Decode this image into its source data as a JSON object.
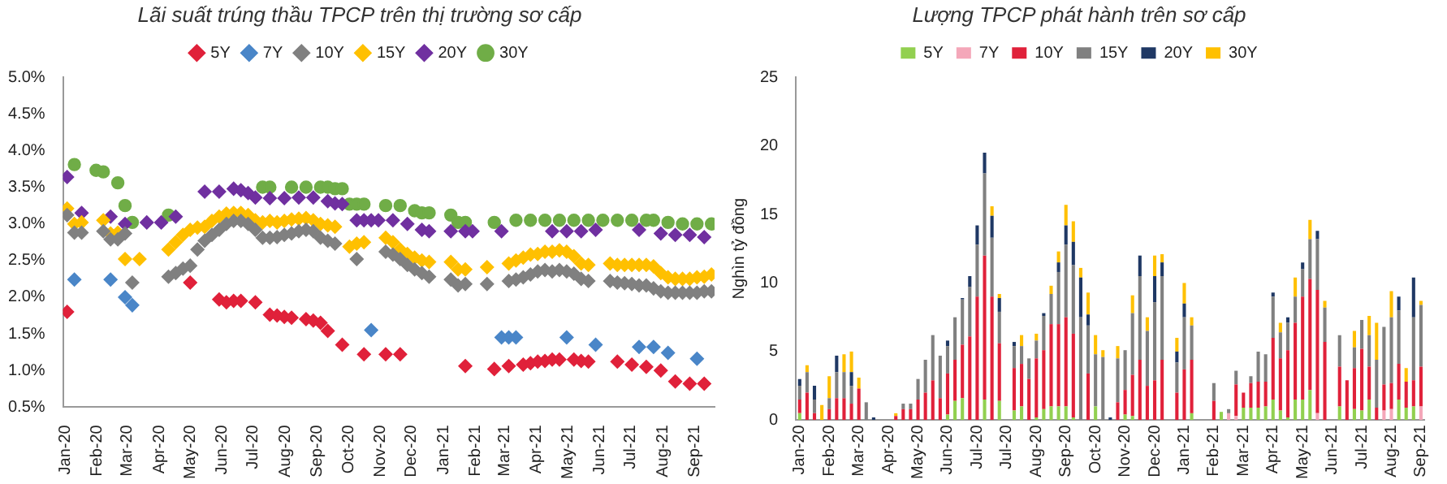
{
  "chart_data": [
    {
      "type": "scatter",
      "title": "Lãi suất trúng thầu TPCP trên thị trường sơ cấp",
      "x": [
        "2020-01-03",
        "2020-01-10",
        "2020-01-17",
        "2020-01-24",
        "2020-01-31",
        "2020-02-07",
        "2020-02-14",
        "2020-02-21",
        "2020-02-28",
        "2020-03-06",
        "2020-03-13",
        "2020-03-20",
        "2020-03-27",
        "2020-04-03",
        "2020-04-10",
        "2020-04-17",
        "2020-04-24",
        "2020-05-01",
        "2020-05-08",
        "2020-05-15",
        "2020-05-22",
        "2020-05-29",
        "2020-06-05",
        "2020-06-12",
        "2020-06-19",
        "2020-06-26",
        "2020-07-03",
        "2020-07-10",
        "2020-07-17",
        "2020-07-24",
        "2020-07-31",
        "2020-08-07",
        "2020-08-14",
        "2020-08-21",
        "2020-08-28",
        "2020-09-04",
        "2020-09-11",
        "2020-09-18",
        "2020-09-25",
        "2020-10-02",
        "2020-10-09",
        "2020-10-16",
        "2020-10-23",
        "2020-10-30",
        "2020-11-06",
        "2020-11-13",
        "2020-11-20",
        "2020-11-27",
        "2020-12-04",
        "2020-12-11",
        "2020-12-18",
        "2020-12-25",
        "2021-01-01",
        "2021-01-08",
        "2021-01-15",
        "2021-01-22",
        "2021-01-29",
        "2021-02-05",
        "2021-02-12",
        "2021-02-19",
        "2021-02-26",
        "2021-03-05",
        "2021-03-12",
        "2021-03-19",
        "2021-03-26",
        "2021-04-02",
        "2021-04-09",
        "2021-04-16",
        "2021-04-23",
        "2021-04-30",
        "2021-05-07",
        "2021-05-14",
        "2021-05-21",
        "2021-05-28",
        "2021-06-04",
        "2021-06-11",
        "2021-06-18",
        "2021-06-25",
        "2021-07-02",
        "2021-07-09",
        "2021-07-16",
        "2021-07-23",
        "2021-07-30",
        "2021-08-06",
        "2021-08-13",
        "2021-08-20",
        "2021-08-27",
        "2021-09-03",
        "2021-09-10",
        "2021-09-17"
      ],
      "xlim": [
        "2019-12-30",
        "2021-09-20"
      ],
      "xticks": [
        {
          "value": "2020-01-01",
          "label": "Jan-20"
        },
        {
          "value": "2020-02-01",
          "label": "Feb-20"
        },
        {
          "value": "2020-03-01",
          "label": "Mar-20"
        },
        {
          "value": "2020-04-01",
          "label": "Apr-20"
        },
        {
          "value": "2020-05-01",
          "label": "May-20"
        },
        {
          "value": "2020-06-01",
          "label": "Jun-20"
        },
        {
          "value": "2020-07-01",
          "label": "Jul-20"
        },
        {
          "value": "2020-08-01",
          "label": "Aug-20"
        },
        {
          "value": "2020-09-01",
          "label": "Sep-20"
        },
        {
          "value": "2020-10-01",
          "label": "Oct-20"
        },
        {
          "value": "2020-11-01",
          "label": "Nov-20"
        },
        {
          "value": "2020-12-01",
          "label": "Dec-20"
        },
        {
          "value": "2021-01-01",
          "label": "Jan-21"
        },
        {
          "value": "2021-02-01",
          "label": "Feb-21"
        },
        {
          "value": "2021-03-01",
          "label": "Mar-21"
        },
        {
          "value": "2021-04-01",
          "label": "Apr-21"
        },
        {
          "value": "2021-05-01",
          "label": "May-21"
        },
        {
          "value": "2021-06-01",
          "label": "Jun-21"
        },
        {
          "value": "2021-07-01",
          "label": "Jul-21"
        },
        {
          "value": "2021-08-01",
          "label": "Aug-21"
        },
        {
          "value": "2021-09-01",
          "label": "Sep-21"
        }
      ],
      "ylim": [
        0.5,
        5.0
      ],
      "yticks": [
        {
          "value": 0.5,
          "label": "0.5%"
        },
        {
          "value": 1.0,
          "label": "1.0%"
        },
        {
          "value": 1.5,
          "label": "1.5%"
        },
        {
          "value": 2.0,
          "label": "2.0%"
        },
        {
          "value": 2.5,
          "label": "2.5%"
        },
        {
          "value": 3.0,
          "label": "3.0%"
        },
        {
          "value": 3.5,
          "label": "3.5%"
        },
        {
          "value": 4.0,
          "label": "4.0%"
        },
        {
          "value": 4.5,
          "label": "4.5%"
        },
        {
          "value": 5.0,
          "label": "5.0%"
        }
      ],
      "grid": false,
      "legend": "top",
      "series": [
        {
          "name": "5Y",
          "color": "#e0213a",
          "marker": "diamond",
          "values": [
            1.8,
            null,
            null,
            null,
            null,
            null,
            null,
            null,
            null,
            null,
            null,
            null,
            null,
            null,
            null,
            null,
            null,
            2.2,
            null,
            null,
            null,
            1.97,
            1.93,
            1.95,
            1.95,
            null,
            1.93,
            null,
            1.76,
            1.75,
            1.73,
            1.72,
            null,
            1.7,
            1.68,
            1.65,
            1.54,
            null,
            1.35,
            null,
            null,
            1.22,
            null,
            null,
            1.22,
            null,
            1.22,
            null,
            null,
            null,
            null,
            null,
            null,
            null,
            null,
            1.06,
            null,
            null,
            null,
            1.02,
            null,
            1.06,
            null,
            1.08,
            1.1,
            1.12,
            1.13,
            1.15,
            1.15,
            null,
            1.15,
            1.13,
            1.12,
            null,
            null,
            null,
            1.12,
            null,
            1.08,
            null,
            1.05,
            null,
            1.0,
            null,
            0.85,
            null,
            0.82,
            null,
            0.82,
            null
          ]
        },
        {
          "name": "7Y",
          "color": "#4a86c8",
          "marker": "diamond",
          "values": [
            null,
            2.24,
            null,
            null,
            null,
            null,
            2.24,
            null,
            2.0,
            1.89,
            null,
            null,
            null,
            null,
            null,
            null,
            null,
            null,
            null,
            null,
            null,
            null,
            null,
            null,
            null,
            null,
            null,
            null,
            null,
            null,
            null,
            null,
            null,
            null,
            null,
            null,
            null,
            null,
            null,
            null,
            null,
            null,
            1.55,
            null,
            null,
            null,
            null,
            null,
            null,
            null,
            null,
            null,
            null,
            null,
            null,
            null,
            null,
            null,
            null,
            null,
            1.45,
            1.45,
            1.45,
            null,
            null,
            null,
            null,
            null,
            null,
            1.45,
            null,
            null,
            null,
            1.35,
            null,
            null,
            null,
            null,
            null,
            1.32,
            null,
            1.32,
            null,
            1.24,
            null,
            null,
            null,
            1.16,
            null,
            null
          ]
        },
        {
          "name": "10Y",
          "color": "#808080",
          "marker": "diamond",
          "values": [
            3.12,
            2.88,
            2.88,
            null,
            null,
            2.9,
            2.79,
            2.79,
            2.87,
            2.2,
            null,
            null,
            null,
            null,
            2.28,
            2.33,
            2.39,
            2.43,
            2.65,
            2.77,
            2.85,
            2.92,
            3.0,
            3.04,
            3.04,
            3.0,
            2.92,
            2.81,
            2.81,
            2.82,
            2.85,
            2.87,
            2.9,
            2.92,
            2.9,
            2.81,
            2.77,
            2.73,
            null,
            null,
            2.52,
            null,
            null,
            null,
            2.62,
            2.58,
            2.52,
            2.44,
            2.38,
            2.33,
            2.28,
            null,
            null,
            2.24,
            2.16,
            2.18,
            null,
            null,
            2.18,
            null,
            null,
            2.22,
            2.24,
            2.27,
            2.31,
            2.35,
            2.37,
            2.35,
            2.37,
            2.35,
            2.32,
            2.25,
            2.22,
            null,
            null,
            2.22,
            2.2,
            2.19,
            2.18,
            2.16,
            2.16,
            2.12,
            2.08,
            2.06,
            2.06,
            2.06,
            2.06,
            2.06,
            2.08,
            2.08
          ]
        },
        {
          "name": "15Y",
          "color": "#ffc000",
          "marker": "diamond",
          "values": [
            3.21,
            3.0,
            3.02,
            null,
            null,
            3.05,
            2.87,
            2.88,
            2.52,
            null,
            2.52,
            null,
            null,
            null,
            2.65,
            2.75,
            2.85,
            2.92,
            2.95,
            2.96,
            3.04,
            3.1,
            3.14,
            3.15,
            3.15,
            3.12,
            3.05,
            3.02,
            3.04,
            3.02,
            3.04,
            3.06,
            3.07,
            3.08,
            3.05,
            3.0,
            2.98,
            2.96,
            null,
            2.69,
            2.73,
            2.75,
            null,
            null,
            2.81,
            2.75,
            2.65,
            2.59,
            2.54,
            2.5,
            2.48,
            null,
            null,
            2.48,
            2.38,
            2.38,
            null,
            null,
            2.41,
            null,
            null,
            2.46,
            2.5,
            2.54,
            2.58,
            2.59,
            2.62,
            2.62,
            2.64,
            2.62,
            2.56,
            2.46,
            2.44,
            null,
            null,
            2.46,
            2.44,
            2.44,
            2.44,
            2.44,
            2.44,
            2.42,
            2.33,
            2.27,
            2.25,
            2.25,
            2.25,
            2.27,
            2.28,
            2.31
          ]
        },
        {
          "name": "20Y",
          "color": "#7030a0",
          "marker": "diamond",
          "values": [
            3.64,
            null,
            3.15,
            null,
            null,
            null,
            3.1,
            null,
            3.0,
            null,
            null,
            3.02,
            null,
            3.02,
            null,
            3.1,
            null,
            null,
            null,
            3.44,
            null,
            3.44,
            null,
            3.48,
            3.46,
            3.42,
            3.36,
            null,
            3.35,
            null,
            3.35,
            null,
            3.36,
            null,
            3.36,
            null,
            3.31,
            3.28,
            3.27,
            null,
            3.05,
            3.05,
            3.05,
            3.05,
            null,
            3.05,
            null,
            3.0,
            null,
            2.92,
            2.9,
            null,
            null,
            2.9,
            null,
            2.9,
            2.9,
            null,
            null,
            null,
            2.9,
            null,
            null,
            null,
            null,
            null,
            null,
            2.9,
            null,
            2.9,
            null,
            2.9,
            null,
            2.92,
            null,
            null,
            null,
            null,
            null,
            2.92,
            null,
            null,
            2.87,
            null,
            2.85,
            null,
            2.85,
            null,
            2.82,
            null
          ]
        },
        {
          "name": "30Y",
          "color": "#70ad47",
          "marker": "circle",
          "values": [
            null,
            3.81,
            null,
            null,
            3.73,
            3.71,
            null,
            3.56,
            3.25,
            3.02,
            null,
            null,
            null,
            null,
            3.12,
            null,
            null,
            null,
            null,
            null,
            null,
            null,
            null,
            null,
            null,
            null,
            null,
            3.5,
            3.5,
            null,
            null,
            3.5,
            null,
            3.5,
            null,
            3.5,
            3.5,
            3.48,
            3.48,
            3.27,
            3.27,
            3.27,
            null,
            null,
            3.25,
            null,
            3.25,
            null,
            3.18,
            3.15,
            3.15,
            null,
            null,
            3.12,
            3.02,
            3.02,
            null,
            null,
            null,
            3.02,
            null,
            null,
            3.05,
            null,
            3.05,
            null,
            3.05,
            null,
            3.05,
            null,
            3.05,
            null,
            3.05,
            null,
            3.05,
            null,
            3.05,
            null,
            3.05,
            null,
            3.05,
            3.05,
            null,
            3.02,
            null,
            3.0,
            null,
            3.0,
            null,
            3.0
          ]
        }
      ]
    },
    {
      "type": "bar",
      "stacked": true,
      "title": "Lượng TPCP phát hành trên sơ cấp",
      "ylabel": "Nghìn tỷ đồng",
      "categories": [
        "Jan-20",
        null,
        null,
        null,
        "Feb-20",
        null,
        null,
        null,
        "Mar-20",
        null,
        null,
        null,
        "Apr-20",
        null,
        null,
        null,
        "May-20",
        null,
        null,
        null,
        "Jun-20",
        null,
        null,
        null,
        "Jul-20",
        null,
        null,
        null,
        "Jul-20",
        null,
        null,
        null,
        "Aug-20",
        null,
        null,
        null,
        "Sep-20",
        null,
        null,
        null,
        "Oct-20",
        null,
        null,
        null,
        "Nov-20",
        null,
        null,
        null,
        "Dec-20",
        null,
        null,
        null,
        "Jan-21",
        null,
        null,
        null,
        "Feb-21",
        null,
        null,
        null,
        "Mar-21",
        null,
        null,
        null,
        "Apr-21",
        null,
        null,
        null,
        "May-21",
        null,
        null,
        null,
        "Jun-21",
        null,
        null,
        null,
        "Jul-21",
        null,
        null,
        null,
        "Aug-21",
        null,
        null,
        null,
        "Sep-21"
      ],
      "ylim": [
        0,
        25
      ],
      "yticks": [
        0,
        5,
        10,
        15,
        20,
        25
      ],
      "grid": false,
      "legend": "top",
      "series": [
        {
          "name": "5Y",
          "color": "#92d050",
          "values": [
            0.5,
            null,
            null,
            null,
            null,
            null,
            null,
            null,
            null,
            null,
            null,
            null,
            null,
            null,
            null,
            null,
            null,
            null,
            null,
            null,
            0.4,
            1.4,
            1.6,
            null,
            null,
            1.5,
            null,
            1.4,
            null,
            0.7,
            1.0,
            null,
            0.2,
            0.8,
            1.0,
            1.0,
            1.0,
            0.2,
            null,
            null,
            1.0,
            null,
            null,
            null,
            0.4,
            0.3,
            null,
            null,
            null,
            null,
            null,
            null,
            null,
            0.5,
            null,
            null,
            null,
            0.6,
            null,
            null,
            0.9,
            0.9,
            0.9,
            1.0,
            1.5,
            0.7,
            0.2,
            1.5,
            1.5,
            2.2,
            null,
            null,
            null,
            1.0,
            null,
            0.8,
            0.7,
            1.5,
            null,
            null,
            null,
            1.5,
            0.9,
            1.0,
            null
          ]
        },
        {
          "name": "7Y",
          "color": "#f4a7b9",
          "values": [
            null,
            null,
            null,
            null,
            null,
            null,
            null,
            null,
            null,
            null,
            null,
            null,
            null,
            null,
            null,
            null,
            null,
            null,
            null,
            null,
            null,
            null,
            null,
            null,
            null,
            null,
            null,
            null,
            null,
            null,
            null,
            null,
            null,
            null,
            null,
            null,
            null,
            null,
            null,
            null,
            null,
            null,
            null,
            null,
            null,
            null,
            null,
            null,
            null,
            null,
            null,
            null,
            null,
            null,
            null,
            null,
            null,
            null,
            0.5,
            0.3,
            null,
            null,
            null,
            null,
            null,
            null,
            null,
            null,
            null,
            null,
            0.5,
            null,
            null,
            null,
            null,
            null,
            null,
            null,
            null,
            0.7,
            0.8,
            null,
            null,
            null,
            1.0
          ]
        },
        {
          "name": "10Y",
          "color": "#e0213a",
          "values": [
            1.0,
            2.0,
            0.5,
            null,
            0.8,
            1.6,
            1.6,
            1.2,
            2.3,
            null,
            null,
            null,
            null,
            0.3,
            0.8,
            0.8,
            1.5,
            2.0,
            2.9,
            1.6,
            3.0,
            3.0,
            3.9,
            6.1,
            9.0,
            10.5,
            9.0,
            4.2,
            null,
            3.1,
            3.1,
            3.0,
            4.3,
            4.3,
            6.0,
            6.0,
            6.5,
            6.1,
            null,
            3.4,
            null,
            null,
            null,
            1.3,
            1.8,
            3.0,
            4.4,
            2.5,
            2.9,
            4.4,
            null,
            2.0,
            3.7,
            3.9,
            null,
            null,
            1.4,
            null,
            null,
            2.3,
            1.1,
            1.8,
            1.9,
            1.8,
            4.5,
            3.8,
            4.9,
            5.6,
            7.5,
            8.1,
            9.0,
            5.7,
            null,
            2.9,
            2.9,
            3.0,
            4.5,
            2.4,
            0.9,
            1.9,
            1.9,
            2.6,
            1.9,
            1.9,
            2.9
          ]
        },
        {
          "name": "15Y",
          "color": "#808080",
          "values": [
            1.0,
            1.5,
            1.0,
            null,
            0.8,
            1.9,
            1.9,
            1.3,
            null,
            1.3,
            null,
            null,
            null,
            null,
            0.4,
            0.4,
            1.5,
            2.4,
            3.3,
            3.1,
            2.0,
            3.1,
            3.3,
            3.6,
            3.8,
            6.0,
            4.3,
            2.3,
            null,
            1.6,
            1.3,
            1.5,
            1.3,
            2.5,
            2.2,
            3.8,
            5.3,
            5.0,
            7.5,
            3.5,
            3.8,
            4.6,
            null,
            3.2,
            2.9,
            4.5,
            6.1,
            4.0,
            5.7,
            6.1,
            null,
            2.2,
            3.8,
            2.5,
            null,
            null,
            1.3,
            null,
            0.3,
            1.0,
            null,
            0.5,
            2.2,
            2.0,
            3.0,
            1.9,
            2.0,
            1.9,
            2.0,
            2.9,
            3.7,
            2.5,
            null,
            2.3,
            null,
            1.5,
            2.1,
            2.3,
            3.5,
            4.2,
            4.8,
            3.9,
            null,
            4.6,
            4.5
          ]
        },
        {
          "name": "20Y",
          "color": "#1f3864",
          "values": [
            0.5,
            null,
            1.0,
            null,
            null,
            1.2,
            null,
            1.0,
            null,
            null,
            0.2,
            null,
            null,
            null,
            null,
            null,
            null,
            null,
            null,
            null,
            0.4,
            null,
            0.1,
            0.8,
            1.4,
            1.5,
            1.6,
            1.0,
            null,
            0.3,
            null,
            null,
            null,
            0.2,
            null,
            0.7,
            1.4,
            1.7,
            2.9,
            0.8,
            null,
            null,
            0.2,
            null,
            null,
            null,
            1.5,
            null,
            1.9,
            1.0,
            null,
            0.8,
            1.0,
            null,
            null,
            null,
            null,
            null,
            null,
            null,
            null,
            null,
            null,
            null,
            0.3,
            null,
            0.4,
            null,
            0.5,
            null,
            0.6,
            null,
            null,
            null,
            null,
            null,
            null,
            null,
            null,
            null,
            null,
            1.0,
            null,
            2.9,
            null
          ]
        },
        {
          "name": "30Y",
          "color": "#ffc000",
          "values": [
            null,
            0.5,
            null,
            1.1,
            1.6,
            null,
            1.3,
            1.5,
            0.8,
            null,
            null,
            null,
            null,
            0.2,
            null,
            null,
            null,
            null,
            null,
            null,
            null,
            null,
            null,
            null,
            null,
            null,
            0.7,
            0.3,
            null,
            null,
            0.8,
            null,
            0.5,
            null,
            0.6,
            0.8,
            1.5,
            1.5,
            0.7,
            1.6,
            1.4,
            0.5,
            null,
            0.9,
            null,
            1.3,
            null,
            1.0,
            1.5,
            0.6,
            null,
            1.0,
            1.5,
            0.6,
            null,
            null,
            null,
            null,
            null,
            null,
            null,
            null,
            null,
            null,
            null,
            0.7,
            null,
            1.4,
            null,
            1.4,
            null,
            0.5,
            null,
            null,
            null,
            1.2,
            null,
            1.4,
            2.7,
            null,
            1.9,
            null,
            1.0,
            null,
            0.3
          ]
        }
      ]
    }
  ]
}
